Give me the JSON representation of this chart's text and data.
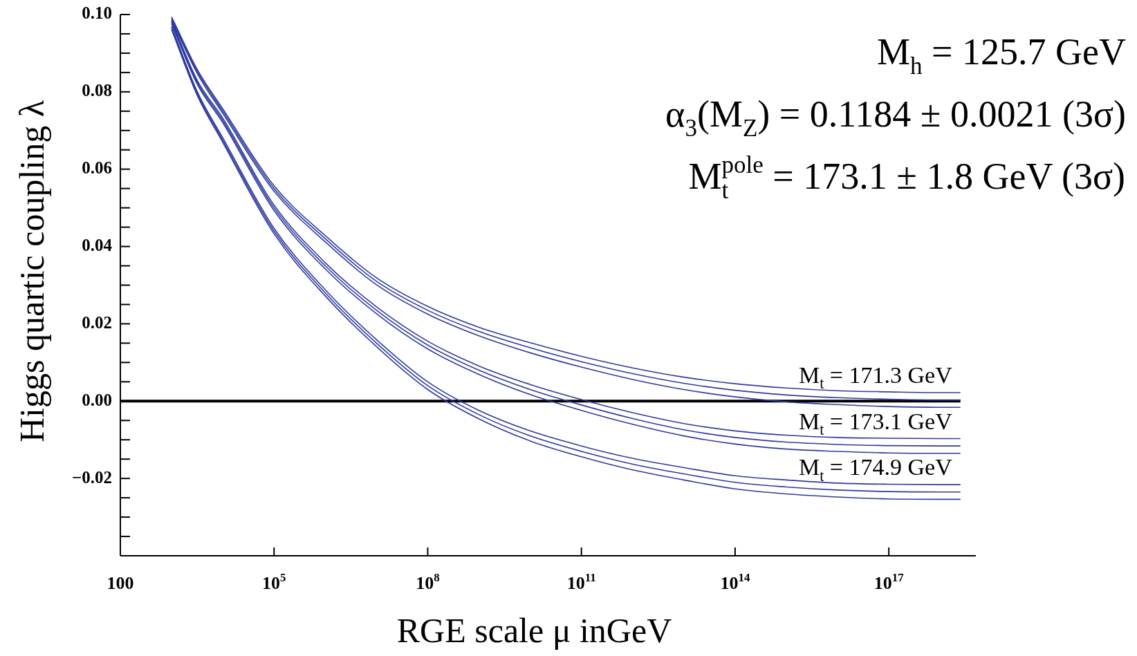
{
  "chart_data": {
    "type": "line",
    "xlabel": "RGE scale μ inGeV",
    "ylabel": "Higgs quartic coupling λ",
    "log": "x",
    "xlim": [
      100,
      5e+18
    ],
    "ylim": [
      -0.04,
      0.1
    ],
    "xticks": [
      {
        "value": 100,
        "label": "100"
      },
      {
        "value": 100000.0,
        "label": "10$^{5}$"
      },
      {
        "value": 100000000.0,
        "label": "10$^{8}$"
      },
      {
        "value": 100000000000.0,
        "label": "10$^{11}$"
      },
      {
        "value": 100000000000000.0,
        "label": "10$^{14}$"
      },
      {
        "value": 1e+17,
        "label": "10$^{17}$"
      }
    ],
    "yticks": [
      {
        "value": 0.1,
        "label": "0.10"
      },
      {
        "value": 0.095,
        "label": null
      },
      {
        "value": 0.09,
        "label": null
      },
      {
        "value": 0.085,
        "label": null
      },
      {
        "value": 0.08,
        "label": "0.08"
      },
      {
        "value": 0.075,
        "label": null
      },
      {
        "value": 0.07,
        "label": null
      },
      {
        "value": 0.065,
        "label": null
      },
      {
        "value": 0.06,
        "label": "0.06"
      },
      {
        "value": 0.055,
        "label": null
      },
      {
        "value": 0.05,
        "label": null
      },
      {
        "value": 0.045,
        "label": null
      },
      {
        "value": 0.04,
        "label": "0.04"
      },
      {
        "value": 0.035,
        "label": null
      },
      {
        "value": 0.03,
        "label": null
      },
      {
        "value": 0.025,
        "label": null
      },
      {
        "value": 0.02,
        "label": "0.02"
      },
      {
        "value": 0.015,
        "label": null
      },
      {
        "value": 0.01,
        "label": null
      },
      {
        "value": 0.005,
        "label": null
      },
      {
        "value": 0,
        "label": "0.00"
      },
      {
        "value": -0.005,
        "label": null
      },
      {
        "value": -0.01,
        "label": null
      },
      {
        "value": -0.015,
        "label": null
      },
      {
        "value": -0.02,
        "label": "−0.02"
      },
      {
        "value": -0.025,
        "label": null
      },
      {
        "value": -0.03,
        "label": null
      },
      {
        "value": -0.035,
        "label": null
      }
    ],
    "x": [
      1000,
      3162,
      10000,
      100000.0,
      1000000.0,
      10000000.0,
      100000000.0,
      1000000000.0,
      10000000000.0,
      100000000000.0,
      1000000000000.0,
      10000000000000.0,
      100000000000000.0,
      1000000000000000.0,
      1e+16,
      1e+17,
      1e+18,
      2.5e+18
    ],
    "series": [
      {
        "name": "M$_{t}$ = 171.3 GeV",
        "color": "#2e3a9e",
        "values": [
          0.0994,
          0.0858,
          0.0756,
          0.0557,
          0.0428,
          0.0319,
          0.0245,
          0.0191,
          0.0151,
          0.0116,
          0.0086,
          0.0062,
          0.0045,
          0.0034,
          0.0027,
          0.0024,
          0.0022,
          0.0022
        ]
      },
      {
        "color": "#2e3a9e",
        "values": [
          0.099,
          0.0853,
          0.075,
          0.055,
          0.042,
          0.031,
          0.0235,
          0.018,
          0.0138,
          0.0102,
          0.0071,
          0.0046,
          0.0028,
          0.0016,
          0.0009,
          0.0005,
          0.0003,
          0.0003
        ]
      },
      {
        "color": "#2e3a9e",
        "values": [
          0.0986,
          0.0848,
          0.0744,
          0.0543,
          0.0412,
          0.0301,
          0.0225,
          0.0169,
          0.0125,
          0.0088,
          0.0056,
          0.003,
          0.0011,
          -0.0002,
          -0.0009,
          -0.0014,
          -0.0016,
          -0.0016
        ]
      },
      {
        "name": "M$_{t}$ = 173.1 GeV",
        "color": "#2e3a9e",
        "values": [
          0.0984,
          0.083,
          0.0732,
          0.0507,
          0.0358,
          0.0244,
          0.0155,
          0.0091,
          0.0043,
          0.0004,
          -0.003,
          -0.0058,
          -0.0077,
          -0.0088,
          -0.0094,
          -0.0096,
          -0.0097,
          -0.0097
        ]
      },
      {
        "color": "#2e3a9e",
        "values": [
          0.098,
          0.0825,
          0.0726,
          0.05,
          0.035,
          0.0235,
          0.0145,
          0.008,
          0.003,
          -0.001,
          -0.0045,
          -0.0074,
          -0.0094,
          -0.0106,
          -0.0112,
          -0.0115,
          -0.0116,
          -0.0116
        ]
      },
      {
        "color": "#2e3a9e",
        "values": [
          0.0976,
          0.082,
          0.072,
          0.0493,
          0.0342,
          0.0226,
          0.0135,
          0.0069,
          0.0017,
          -0.0024,
          -0.006,
          -0.009,
          -0.0111,
          -0.0124,
          -0.013,
          -0.0134,
          -0.0135,
          -0.0135
        ]
      },
      {
        "name": "M$_{t}$ = 174.9 GeV",
        "color": "#2e3a9e",
        "values": [
          0.0969,
          0.0801,
          0.0681,
          0.0447,
          0.0288,
          0.0159,
          0.005,
          -0.0024,
          -0.0077,
          -0.0116,
          -0.0148,
          -0.0172,
          -0.0193,
          -0.0204,
          -0.0212,
          -0.0215,
          -0.0216,
          -0.0216
        ]
      },
      {
        "color": "#2e3a9e",
        "values": [
          0.0965,
          0.0796,
          0.0675,
          0.044,
          0.028,
          0.015,
          0.004,
          -0.0035,
          -0.009,
          -0.013,
          -0.0163,
          -0.0188,
          -0.021,
          -0.0222,
          -0.023,
          -0.0234,
          -0.0235,
          -0.0235
        ]
      },
      {
        "color": "#2e3a9e",
        "values": [
          0.0961,
          0.0791,
          0.0669,
          0.0433,
          0.0272,
          0.0141,
          0.003,
          -0.0046,
          -0.0103,
          -0.0144,
          -0.0178,
          -0.0204,
          -0.0227,
          -0.024,
          -0.0248,
          -0.0253,
          -0.0254,
          -0.0254
        ]
      }
    ],
    "ref_lines": [
      {
        "axis": "y",
        "value": 0,
        "color": "#000000"
      }
    ],
    "annotations": [
      "M$_{h}$ = 125.7 GeV",
      "α$_{3}$(M$_{Z}$) = 0.1184 ± 0.0021 (3σ)",
      "M$_{t}$$^{pole}$ = 173.1 ± 1.8 GeV (3σ)"
    ]
  }
}
